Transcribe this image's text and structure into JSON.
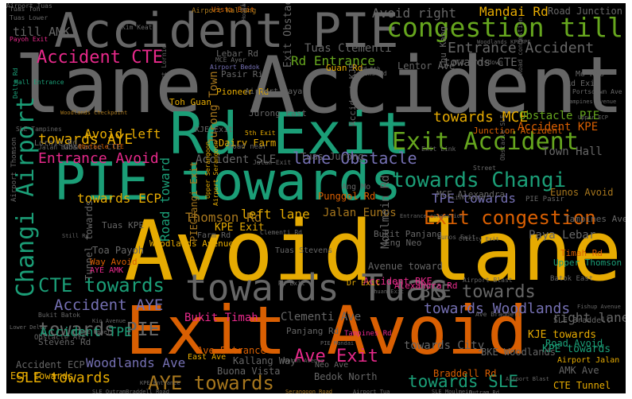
{
  "palette": {
    "background": "#000000",
    "colors": {
      "grey": "#666666",
      "teal": "#1b9e77",
      "orange": "#d95f02",
      "gold": "#e6ab02",
      "purple": "#7570b3",
      "pink": "#e7298a",
      "green": "#66a61e",
      "brown": "#a6761d"
    }
  },
  "words": [
    {
      "text": "lane Accident",
      "color": "grey"
    },
    {
      "text": "Avoid lane",
      "color": "gold"
    },
    {
      "text": "Exit Avoid",
      "color": "orange"
    },
    {
      "text": "PIE towards",
      "color": "teal"
    },
    {
      "text": "Rd Exit",
      "color": "teal"
    },
    {
      "text": "Accident PIE",
      "color": "grey"
    },
    {
      "text": "towards Tuas",
      "color": "grey"
    },
    {
      "text": "congestion till",
      "color": "green"
    },
    {
      "text": "Changi Airport",
      "color": "teal"
    },
    {
      "text": "Exit Accident",
      "color": "green"
    },
    {
      "text": "towards Changi",
      "color": "teal"
    },
    {
      "text": "Exit congestion",
      "color": "orange"
    },
    {
      "text": "Accident CTE",
      "color": "pink"
    },
    {
      "text": "CTE towards",
      "color": "teal"
    },
    {
      "text": "lane Obstacle",
      "color": "purple"
    },
    {
      "text": "Ave Exit",
      "color": "pink"
    },
    {
      "text": "AYE towards",
      "color": "brown"
    },
    {
      "text": "towards SLE",
      "color": "teal"
    },
    {
      "text": "towards PIE",
      "color": "grey"
    },
    {
      "text": "BKE towards",
      "color": "grey"
    },
    {
      "text": "towards AYE",
      "color": "gold"
    },
    {
      "text": "Accident AYE",
      "color": "purple"
    },
    {
      "text": "Entrance Accident",
      "color": "grey"
    },
    {
      "text": "towards Woodlands",
      "color": "purple"
    },
    {
      "text": "Thomson Rd",
      "color": "brown"
    },
    {
      "text": "Entrance Avoid",
      "color": "pink"
    },
    {
      "text": "towards MCE",
      "color": "gold"
    },
    {
      "text": "Avoid right",
      "color": "grey"
    },
    {
      "text": "Mandai Rd",
      "color": "gold"
    },
    {
      "text": "Rd Entrance",
      "color": "green"
    },
    {
      "text": "Tuas Clementi",
      "color": "grey"
    },
    {
      "text": "towards CTE",
      "color": "grey"
    },
    {
      "text": "Accident SLE",
      "color": "grey"
    },
    {
      "text": "Accident TPE",
      "color": "teal"
    },
    {
      "text": "SLE towards",
      "color": "gold"
    },
    {
      "text": "towards ECP",
      "color": "gold"
    },
    {
      "text": "Road toward",
      "color": "teal"
    },
    {
      "text": "Obstacle PIE",
      "color": "green"
    },
    {
      "text": "left lane",
      "color": "gold"
    },
    {
      "text": "Jalan Eunos",
      "color": "brown"
    },
    {
      "text": "TPE towards",
      "color": "purple"
    },
    {
      "text": "towards City",
      "color": "grey"
    },
    {
      "text": "Bukit Timah",
      "color": "pink"
    },
    {
      "text": "Clementi Ave",
      "color": "grey"
    },
    {
      "text": "Avoid left",
      "color": "gold"
    },
    {
      "text": "Accident KPE",
      "color": "orange"
    },
    {
      "text": "Woodlands Ave",
      "color": "purple"
    },
    {
      "text": "KPE towards",
      "color": "teal"
    },
    {
      "text": "KJE towards",
      "color": "gold"
    },
    {
      "text": "right lane",
      "color": "grey"
    },
    {
      "text": "Paya Lebar",
      "color": "grey"
    },
    {
      "text": "Town Hall",
      "color": "grey"
    },
    {
      "text": "Jurong Town",
      "color": "brown"
    },
    {
      "text": "Lentor Ave",
      "color": "grey"
    },
    {
      "text": "Road Junction",
      "color": "grey"
    },
    {
      "text": "Eunos Avoid",
      "color": "brown"
    },
    {
      "text": "Tunnel towards",
      "color": "grey"
    },
    {
      "text": "Avenue toward",
      "color": "grey"
    },
    {
      "text": "Moulmein Rd",
      "color": "grey"
    },
    {
      "text": "Accident BKE",
      "color": "pink"
    },
    {
      "text": "PIEChangi Exit",
      "color": "brown"
    },
    {
      "text": "KPE Exit",
      "color": "gold"
    },
    {
      "text": "BKE Woodlands",
      "color": "grey"
    },
    {
      "text": "Dairy Farm",
      "color": "gold"
    },
    {
      "text": "Tuas Jurong",
      "color": "grey"
    },
    {
      "text": "MCE Alexandra",
      "color": "grey"
    },
    {
      "text": "Woodlands Avenue",
      "color": "gold"
    },
    {
      "text": "Accident ECP",
      "color": "grey"
    },
    {
      "text": "ECP towards",
      "color": "gold"
    },
    {
      "text": "AMK Ave",
      "color": "grey"
    },
    {
      "text": "CTE Tunnel",
      "color": "gold"
    },
    {
      "text": "Road Avoid",
      "color": "teal"
    },
    {
      "text": "Stevens Rd",
      "color": "grey"
    },
    {
      "text": "Kallang Way",
      "color": "grey"
    },
    {
      "text": "Bedok North",
      "color": "grey"
    },
    {
      "text": "Braddell Rd",
      "color": "orange"
    },
    {
      "text": "Buona Vista",
      "color": "grey"
    },
    {
      "text": "Upper Thomson",
      "color": "teal"
    },
    {
      "text": "Timah Rd",
      "color": "orange"
    },
    {
      "text": "Alexandra Rd",
      "color": "pink"
    },
    {
      "text": "Ave Entrance",
      "color": "orange"
    },
    {
      "text": "Toa Payoh",
      "color": "grey"
    },
    {
      "text": "Jurong East",
      "color": "grey"
    },
    {
      "text": "Pasir Ris",
      "color": "grey"
    },
    {
      "text": "Guan Rd",
      "color": "gold"
    },
    {
      "text": "Lebar Rd",
      "color": "grey"
    },
    {
      "text": "Pioneer Rd",
      "color": "gold"
    },
    {
      "text": "Junction Accident",
      "color": "orange"
    },
    {
      "text": "Tuas KPE",
      "color": "grey"
    },
    {
      "text": "Eng Neo",
      "color": "grey"
    },
    {
      "text": "Tampines Ave",
      "color": "grey"
    },
    {
      "text": "Bukit Panjang",
      "color": "grey"
    },
    {
      "text": "Panjang Rd",
      "color": "grey"
    },
    {
      "text": "Neo Ave",
      "color": "grey"
    },
    {
      "text": "Obstacle CTE",
      "color": "grey"
    },
    {
      "text": "Airport Jalan",
      "color": "gold"
    },
    {
      "text": "SLE Braddell",
      "color": "grey"
    },
    {
      "text": "Lornie Rd",
      "color": "grey"
    },
    {
      "text": "Obstacle AYE",
      "color": "grey"
    },
    {
      "text": "East Ave",
      "color": "gold"
    },
    {
      "text": "Punggol Rd",
      "color": "orange"
    },
    {
      "text": "Tuas Stevens",
      "color": "grey"
    },
    {
      "text": "Dr Exit",
      "color": "gold"
    },
    {
      "text": "Exit Obstacle",
      "color": "grey"
    },
    {
      "text": "KJE Exit",
      "color": "grey"
    },
    {
      "text": "Airport Paya",
      "color": "grey"
    },
    {
      "text": "Accident KJE",
      "color": "grey"
    },
    {
      "text": "Chu Kang",
      "color": "grey"
    },
    {
      "text": "Toh Guan",
      "color": "gold"
    },
    {
      "text": "Mo Kio",
      "color": "grey"
    },
    {
      "text": "Rd Exit",
      "color": "grey"
    },
    {
      "text": "Road near",
      "color": "grey"
    },
    {
      "text": "Farm Rd",
      "color": "grey"
    },
    {
      "text": "Ang Mo",
      "color": "grey"
    },
    {
      "text": "PIE Pasir",
      "color": "grey"
    },
    {
      "text": "Way Avoid",
      "color": "orange"
    },
    {
      "text": "AYE AMK",
      "color": "pink"
    },
    {
      "text": "Bukit Batok",
      "color": "grey"
    },
    {
      "text": "Tampines Rd",
      "color": "pink"
    },
    {
      "text": "Airport Thomson",
      "color": "grey"
    },
    {
      "text": "Tuas Toh",
      "color": "grey"
    },
    {
      "text": "Tuas Lower",
      "color": "grey"
    },
    {
      "text": "Payoh Exit",
      "color": "pink"
    },
    {
      "text": "Vista Exit",
      "color": "orange"
    },
    {
      "text": "Airport Kallang",
      "color": "brown"
    },
    {
      "text": "till AMK",
      "color": "grey"
    },
    {
      "text": "Kim Keat",
      "color": "grey"
    },
    {
      "text": "Delta Rd",
      "color": "teal"
    },
    {
      "text": "Hall Entrance",
      "color": "teal"
    },
    {
      "text": "SLE Tampines",
      "color": "grey"
    },
    {
      "text": "Jalan Bahar",
      "color": "grey"
    },
    {
      "text": "Obstacle CTE",
      "color": "orange"
    },
    {
      "text": "Airport Serangoon",
      "color": "gold"
    },
    {
      "text": "Upper Serangoon",
      "color": "gold"
    },
    {
      "text": "Eunos Exit",
      "color": "grey"
    },
    {
      "text": "Sims Rd",
      "color": "grey"
    },
    {
      "text": "MCE Portsdown",
      "color": "grey"
    },
    {
      "text": "Portsdown Ave",
      "color": "grey"
    },
    {
      "text": "Woodlands KPETPE",
      "color": "grey"
    },
    {
      "text": "Hougang Avenue",
      "color": "grey"
    },
    {
      "text": "MCE Ayer",
      "color": "grey"
    },
    {
      "text": "till Paya",
      "color": "grey"
    },
    {
      "text": "Airport Bedok",
      "color": "purple"
    },
    {
      "text": "Airport Lornie",
      "color": "grey"
    },
    {
      "text": "Woodlands Checkpoint",
      "color": "brown"
    },
    {
      "text": "Rd 5th",
      "color": "grey"
    },
    {
      "text": "Jalan Exit",
      "color": "grey"
    },
    {
      "text": "Clementi Rd",
      "color": "grey"
    },
    {
      "text": "5th Exit",
      "color": "gold"
    },
    {
      "text": "Rd Exit",
      "color": "grey"
    },
    {
      "text": "BKE Upper",
      "color": "grey"
    },
    {
      "text": "Kio Avenue",
      "color": "grey"
    },
    {
      "text": "Entrance congestion",
      "color": "grey"
    },
    {
      "text": "Batok East",
      "color": "grey"
    },
    {
      "text": "Ave Braddell",
      "color": "grey"
    },
    {
      "text": "Fishup Avenue",
      "color": "grey"
    },
    {
      "text": "Airport Blast",
      "color": "grey"
    },
    {
      "text": "Serangoon Road",
      "color": "brown"
    },
    {
      "text": "Airport Tua",
      "color": "grey"
    },
    {
      "text": "SLE Moulmein",
      "color": "grey"
    },
    {
      "text": "Outram Rd",
      "color": "grey"
    },
    {
      "text": "SLE OutramBraddell Road",
      "color": "grey"
    },
    {
      "text": "PIE Mandai",
      "color": "grey"
    },
    {
      "text": "North Avenue",
      "color": "grey"
    },
    {
      "text": "Chuan Exit",
      "color": "grey"
    },
    {
      "text": "CTECity Exit",
      "color": "grey"
    },
    {
      "text": "Link Avoid",
      "color": "grey"
    },
    {
      "text": "Lower Delta",
      "color": "grey"
    },
    {
      "text": "Street",
      "color": "grey"
    },
    {
      "text": "Obstacle SLE",
      "color": "grey"
    },
    {
      "text": "Road congestion",
      "color": "grey"
    },
    {
      "text": "Tampines Avenue",
      "color": "grey"
    },
    {
      "text": "Airport Blast",
      "color": "grey"
    },
    {
      "text": "Upper ECP",
      "color": "grey"
    },
    {
      "text": "Exit Link",
      "color": "grey"
    },
    {
      "text": "Still Rd",
      "color": "grey"
    },
    {
      "text": "KPE Entrance",
      "color": "grey"
    },
    {
      "text": "Airport Tuas",
      "color": "grey"
    }
  ]
}
